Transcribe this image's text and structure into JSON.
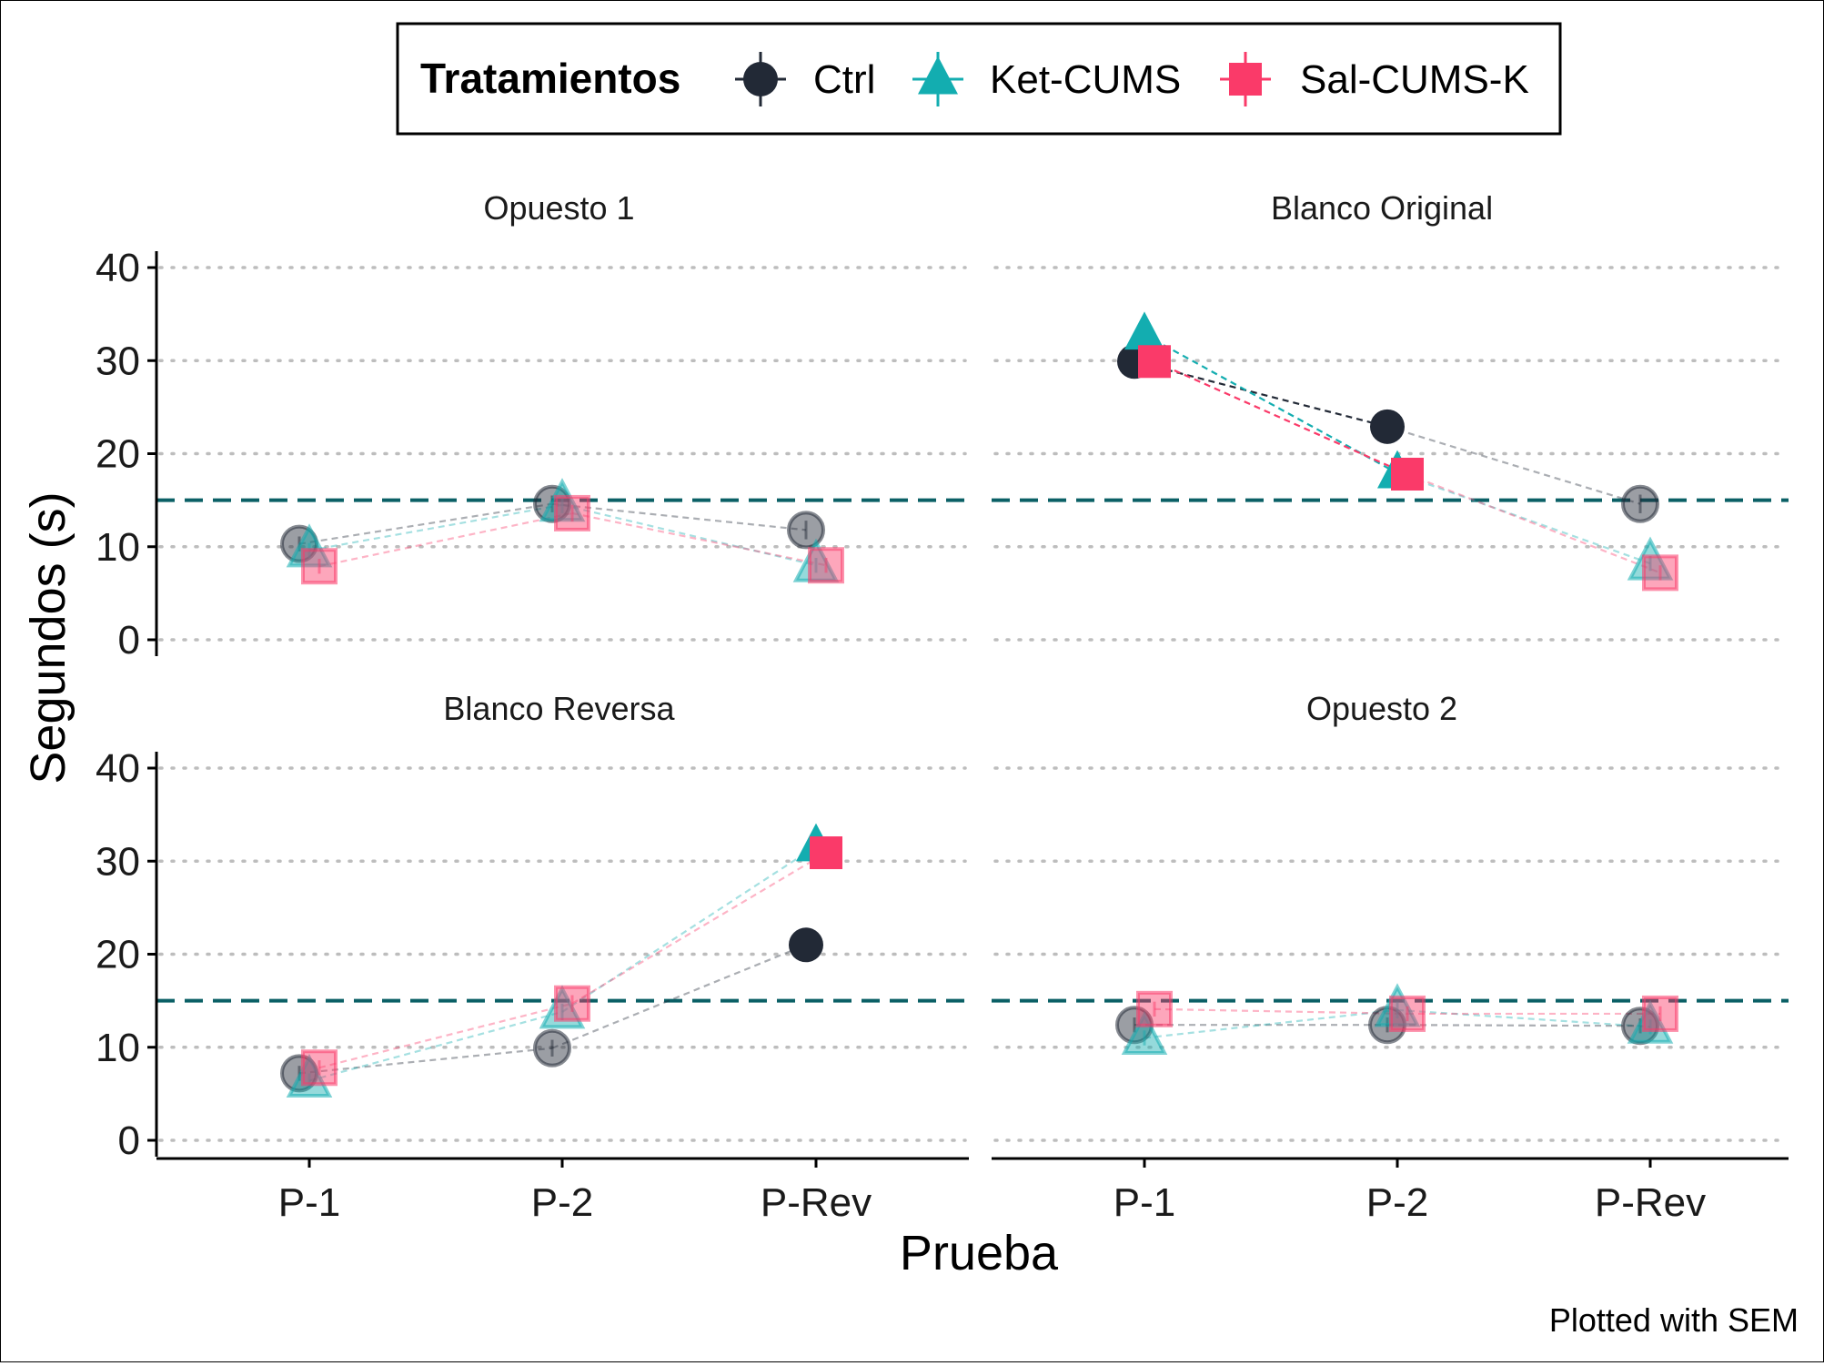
{
  "chart_data": {
    "type": "scatter",
    "legend": {
      "title": "Tratamientos",
      "position": "top",
      "entries": [
        "Ctrl",
        "Ket-CUMS",
        "Sal-CUMS-K"
      ]
    },
    "xlabel": "Prueba",
    "ylabel": "Segundos (s)",
    "caption": "Plotted with SEM",
    "categories": [
      "P-1",
      "P-2",
      "P-Rev"
    ],
    "ylim": [
      0,
      40
    ],
    "yticks": [
      0,
      10,
      20,
      30,
      40
    ],
    "reference_line": 15,
    "grid": "horizontal dotted",
    "colors": {
      "Ctrl": "#222936",
      "Ket-CUMS": "#13adb0",
      "Sal-CUMS-K": "#fa3a69",
      "reference": "#0b6066"
    },
    "markers": {
      "Ctrl": "circle",
      "Ket-CUMS": "triangle",
      "Sal-CUMS-K": "square"
    },
    "facets": [
      {
        "title": "Opuesto 1",
        "series": [
          {
            "name": "Ctrl",
            "values": [
              10.3,
              14.6,
              11.8
            ],
            "sem": [
              0.8,
              0.9,
              1.0
            ],
            "highlighted": [
              false,
              false,
              false
            ]
          },
          {
            "name": "Ket-CUMS",
            "values": [
              9.6,
              14.5,
              8.0
            ],
            "sem": [
              0.8,
              0.9,
              0.8
            ],
            "highlighted": [
              false,
              false,
              false
            ]
          },
          {
            "name": "Sal-CUMS-K",
            "values": [
              7.9,
              13.6,
              8.0
            ],
            "sem": [
              0.8,
              0.9,
              0.8
            ],
            "highlighted": [
              false,
              false,
              false
            ]
          }
        ]
      },
      {
        "title": "Blanco Original",
        "series": [
          {
            "name": "Ctrl",
            "values": [
              29.9,
              22.9,
              14.6
            ],
            "sem": [
              1.0,
              1.5,
              1.0
            ],
            "highlighted": [
              true,
              true,
              false
            ]
          },
          {
            "name": "Ket-CUMS",
            "values": [
              32.8,
              17.9,
              8.2
            ],
            "sem": [
              1.5,
              1.2,
              0.8
            ],
            "highlighted": [
              true,
              true,
              false
            ]
          },
          {
            "name": "Sal-CUMS-K",
            "values": [
              29.9,
              17.8,
              7.2
            ],
            "sem": [
              1.2,
              1.2,
              0.8
            ],
            "highlighted": [
              true,
              true,
              false
            ]
          }
        ]
      },
      {
        "title": "Blanco Reversa",
        "series": [
          {
            "name": "Ctrl",
            "values": [
              7.2,
              9.9,
              21.0
            ],
            "sem": [
              0.8,
              0.9,
              1.8
            ],
            "highlighted": [
              false,
              false,
              true
            ]
          },
          {
            "name": "Ket-CUMS",
            "values": [
              6.4,
              13.8,
              31.6
            ],
            "sem": [
              0.8,
              0.9,
              1.2
            ],
            "highlighted": [
              false,
              false,
              true
            ]
          },
          {
            "name": "Sal-CUMS-K",
            "values": [
              7.8,
              14.7,
              30.9
            ],
            "sem": [
              0.8,
              0.9,
              1.2
            ],
            "highlighted": [
              false,
              false,
              true
            ]
          }
        ]
      },
      {
        "title": "Opuesto 2",
        "series": [
          {
            "name": "Ctrl",
            "values": [
              12.4,
              12.4,
              12.3
            ],
            "sem": [
              0.8,
              0.8,
              0.8
            ],
            "highlighted": [
              false,
              false,
              false
            ]
          },
          {
            "name": "Ket-CUMS",
            "values": [
              11.0,
              14.0,
              12.2
            ],
            "sem": [
              0.8,
              0.9,
              0.8
            ],
            "highlighted": [
              false,
              false,
              false
            ]
          },
          {
            "name": "Sal-CUMS-K",
            "values": [
              14.1,
              13.6,
              13.6
            ],
            "sem": [
              0.8,
              0.8,
              0.8
            ],
            "highlighted": [
              false,
              false,
              false
            ]
          }
        ]
      }
    ]
  }
}
